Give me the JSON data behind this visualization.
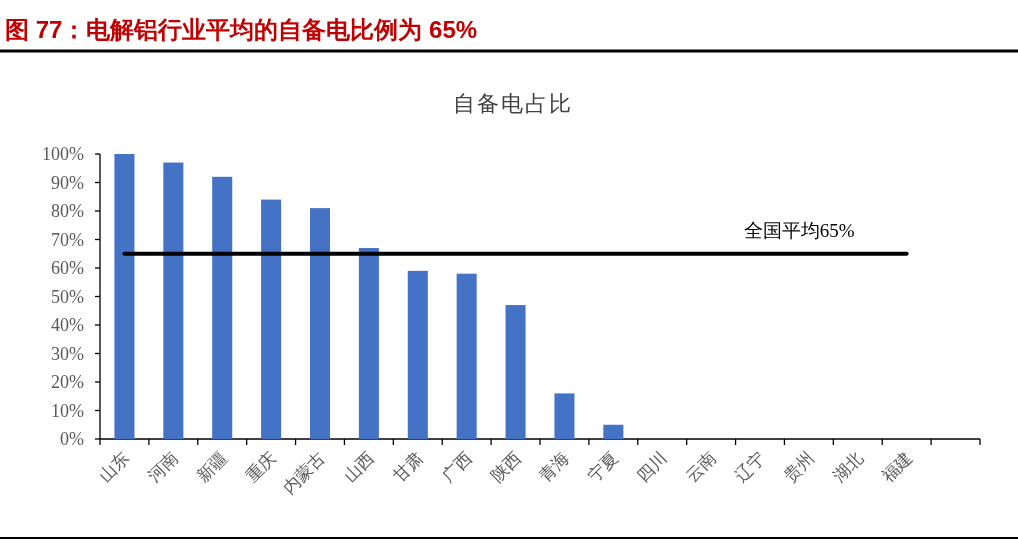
{
  "chart_data": {
    "type": "bar",
    "title": "图 77：电解铝行业平均的自备电比例为 65%",
    "subtitle": "自备电占比",
    "categories": [
      "山东",
      "河南",
      "新疆",
      "重庆",
      "内蒙古",
      "山西",
      "甘肃",
      "广西",
      "陕西",
      "青海",
      "宁夏",
      "四川",
      "云南",
      "辽宁",
      "贵州",
      "湖北",
      "福建",
      null
    ],
    "values": [
      100,
      97,
      92,
      84,
      81,
      67,
      59,
      58,
      47,
      16,
      5,
      0,
      0,
      0,
      0,
      0,
      0,
      null
    ],
    "color": "#4472c4",
    "ylim": [
      0,
      100
    ],
    "yticks": [
      {
        "value": 0,
        "label": "0%"
      },
      {
        "value": 10,
        "label": "10%"
      },
      {
        "value": 20,
        "label": "20%"
      },
      {
        "value": 30,
        "label": "30%"
      },
      {
        "value": 40,
        "label": "40%"
      },
      {
        "value": 50,
        "label": "50%"
      },
      {
        "value": 60,
        "label": "60%"
      },
      {
        "value": 70,
        "label": "70%"
      },
      {
        "value": 80,
        "label": "80%"
      },
      {
        "value": 90,
        "label": "90%"
      },
      {
        "value": 100,
        "label": "100%"
      }
    ],
    "ref_lines": [
      {
        "axis": "y",
        "value": 65,
        "label": "全国平均65%",
        "color": "#000000"
      }
    ]
  }
}
